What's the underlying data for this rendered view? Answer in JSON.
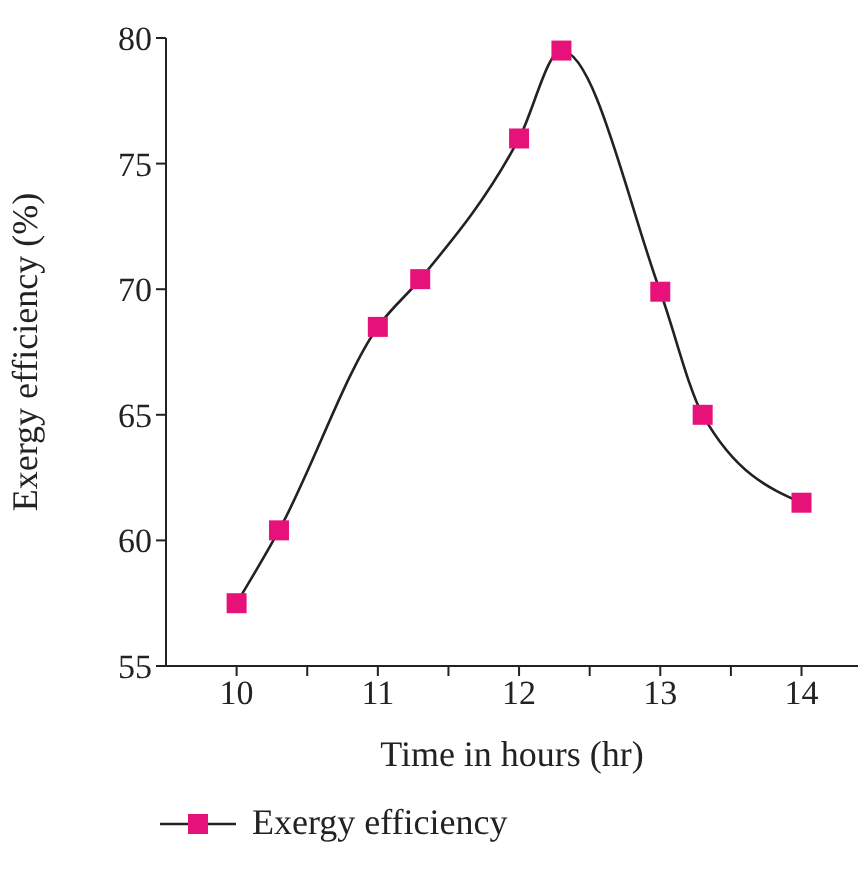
{
  "chart_data": {
    "type": "line",
    "xlabel": "Time in hours (hr)",
    "ylabel": "Exergy efficiency (%)",
    "x": [
      10,
      10.3,
      11,
      11.3,
      12,
      12.3,
      13,
      13.3,
      14
    ],
    "series": [
      {
        "name": "Exergy efficiency",
        "color": "#e6127a",
        "values": [
          57.5,
          60.4,
          68.5,
          70.4,
          76.0,
          79.5,
          69.9,
          65.0,
          61.5
        ]
      }
    ],
    "xlim": [
      9.5,
      14.4
    ],
    "xticks": [
      10,
      {
        "value": 10.5,
        "label": null
      },
      11,
      {
        "value": 11.5,
        "label": null
      },
      12,
      {
        "value": 12.5,
        "label": null
      },
      13,
      {
        "value": 13.5,
        "label": null
      },
      14
    ],
    "ylim": [
      55,
      80
    ],
    "yticks": [
      55,
      60,
      65,
      70,
      75,
      80
    ],
    "grid": false,
    "legend": "bottom left",
    "marker": "square",
    "line_style": "solid"
  }
}
